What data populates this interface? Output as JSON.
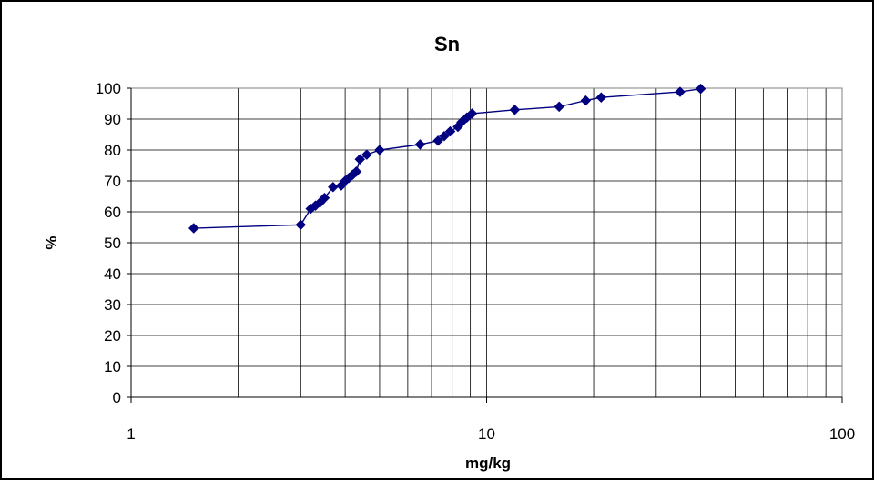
{
  "chart_data": {
    "type": "line",
    "title": "Sn",
    "xlabel": "mg/kg",
    "ylabel": "%",
    "x_scale": "log",
    "xlim": [
      1,
      100
    ],
    "ylim": [
      0,
      100
    ],
    "x_ticks": [
      1,
      10,
      100
    ],
    "x_tick_labels": [
      "1",
      "10",
      "100"
    ],
    "y_ticks": [
      0,
      10,
      20,
      30,
      40,
      50,
      60,
      70,
      80,
      90,
      100
    ],
    "y_tick_labels": [
      "0",
      "10",
      "20",
      "30",
      "40",
      "50",
      "60",
      "70",
      "80",
      "90",
      "100"
    ],
    "grid": true,
    "legend": "none",
    "series": [
      {
        "color": "#000080",
        "marker": "diamond",
        "points": [
          [
            1.5,
            54.7
          ],
          [
            3.0,
            55.8
          ],
          [
            3.2,
            61.0
          ],
          [
            3.3,
            62.0
          ],
          [
            3.4,
            63.0
          ],
          [
            3.5,
            64.5
          ],
          [
            3.7,
            68.0
          ],
          [
            3.9,
            68.5
          ],
          [
            4.0,
            70.0
          ],
          [
            4.1,
            71.0
          ],
          [
            4.2,
            72.0
          ],
          [
            4.3,
            73.0
          ],
          [
            4.4,
            77.0
          ],
          [
            4.6,
            78.5
          ],
          [
            5.0,
            80.0
          ],
          [
            6.5,
            81.8
          ],
          [
            7.3,
            83.0
          ],
          [
            7.6,
            84.5
          ],
          [
            7.9,
            86.0
          ],
          [
            8.3,
            87.5
          ],
          [
            8.5,
            89.0
          ],
          [
            8.8,
            90.5
          ],
          [
            9.1,
            91.8
          ],
          [
            12.0,
            93.0
          ],
          [
            16.0,
            94.0
          ],
          [
            19.0,
            96.0
          ],
          [
            21.0,
            97.0
          ],
          [
            35.0,
            98.8
          ],
          [
            40.0,
            99.8
          ]
        ]
      }
    ]
  }
}
